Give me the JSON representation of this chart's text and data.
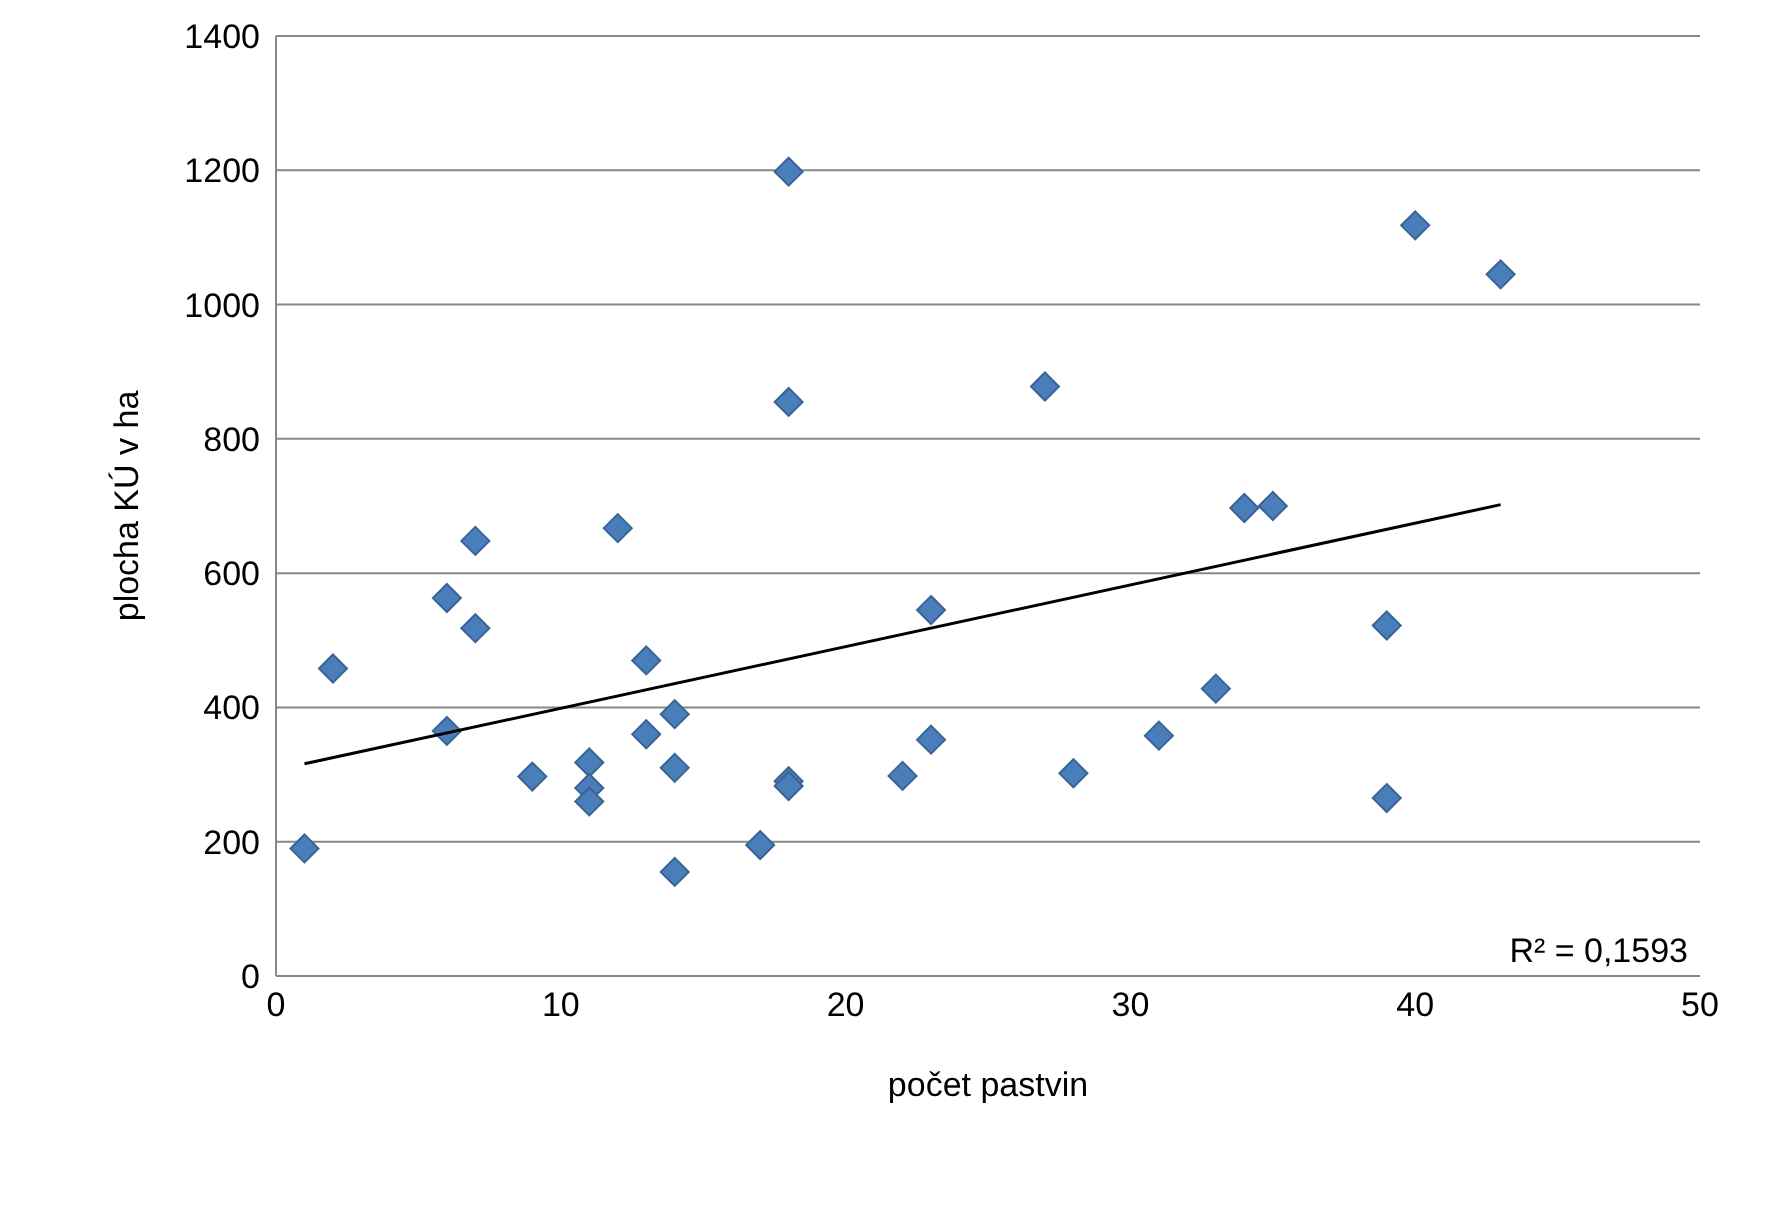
{
  "chart_data": {
    "type": "scatter",
    "xlabel": "počet pastvin",
    "ylabel": "plocha  KÚ v ha",
    "xlim": [
      0,
      50
    ],
    "xticks": [
      0,
      10,
      20,
      30,
      40,
      50
    ],
    "ylim": [
      0,
      1400
    ],
    "yticks": [
      0,
      200,
      400,
      600,
      800,
      1000,
      1200,
      1400
    ],
    "grid": "y",
    "marker": "diamond",
    "annotations": [
      "R² = 0,1593"
    ],
    "series": [
      {
        "type": "scatter",
        "color": "#4a7ebb",
        "x": [
          1,
          2,
          6,
          6,
          7,
          7,
          9,
          11,
          11,
          11,
          12,
          13,
          13,
          14,
          14,
          14,
          17,
          18,
          18,
          18,
          18,
          22,
          23,
          23,
          27,
          28,
          31,
          33,
          34,
          35,
          39,
          39,
          40,
          43
        ],
        "values": [
          190,
          458,
          365,
          563,
          648,
          518,
          297,
          318,
          280,
          260,
          667,
          470,
          360,
          390,
          310,
          155,
          195,
          1198,
          855,
          290,
          283,
          298,
          545,
          352,
          878,
          302,
          358,
          428,
          697,
          700,
          522,
          265,
          1118,
          1045
        ]
      },
      {
        "type": "line",
        "marker": "none",
        "color": "#000000",
        "x": [
          1,
          43
        ],
        "values": [
          316,
          702
        ]
      }
    ]
  }
}
